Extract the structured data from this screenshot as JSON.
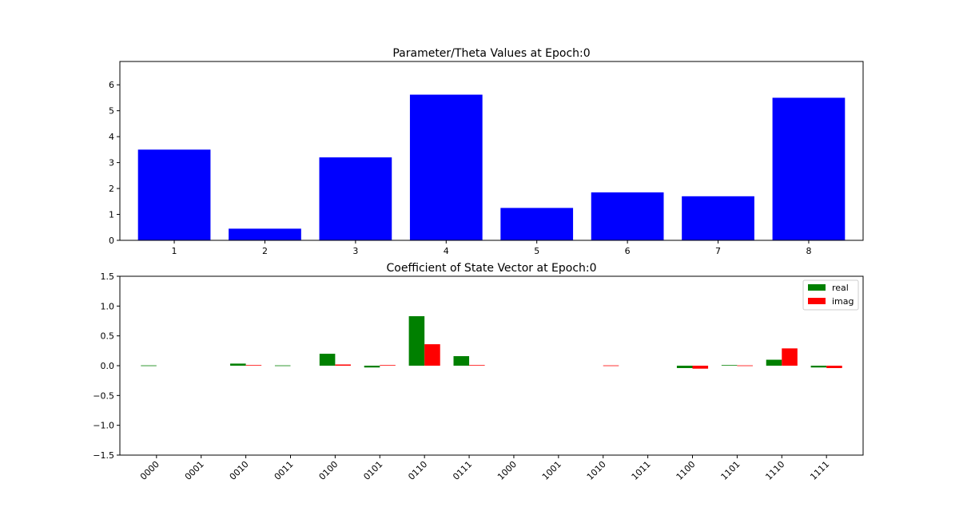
{
  "chart_data": [
    {
      "type": "bar",
      "title": "Parameter/Theta Values at Epoch:0",
      "xlabel": "",
      "ylabel": "",
      "categories": [
        "1",
        "2",
        "3",
        "4",
        "5",
        "6",
        "7",
        "8"
      ],
      "values": [
        3.5,
        0.45,
        3.2,
        5.62,
        1.25,
        1.85,
        1.7,
        5.5
      ],
      "ylim": [
        0,
        6.9
      ],
      "yticks": [
        0,
        1,
        2,
        3,
        4,
        5,
        6
      ],
      "color": "#0000ff",
      "grid": false,
      "legend": null
    },
    {
      "type": "bar",
      "title": "Coefficient of State Vector at Epoch:0",
      "xlabel": "",
      "ylabel": "",
      "categories": [
        "0000",
        "0001",
        "0010",
        "0011",
        "0100",
        "0101",
        "0110",
        "0111",
        "1000",
        "1001",
        "1010",
        "1011",
        "1100",
        "1101",
        "1110",
        "1111"
      ],
      "series": [
        {
          "name": "real",
          "color": "#008000",
          "values": [
            0.005,
            0,
            0.035,
            0.005,
            0.2,
            -0.03,
            0.83,
            0.16,
            0,
            0,
            0,
            0,
            -0.04,
            0.01,
            0.1,
            -0.03
          ]
        },
        {
          "name": "imag",
          "color": "#ff0000",
          "values": [
            0,
            0,
            0.01,
            0,
            0.02,
            0.01,
            0.36,
            0.01,
            0,
            0,
            0.005,
            0,
            -0.05,
            0.005,
            0.29,
            -0.04
          ]
        }
      ],
      "ylim": [
        -1.5,
        1.5
      ],
      "yticks": [
        -1.5,
        -1.0,
        -0.5,
        0.0,
        0.5,
        1.0,
        1.5
      ],
      "ytick_labels": [
        "−1.5",
        "−1.0",
        "−0.5",
        "0.0",
        "0.5",
        "1.0",
        "1.5"
      ],
      "grid": false,
      "legend": "top-right"
    }
  ]
}
